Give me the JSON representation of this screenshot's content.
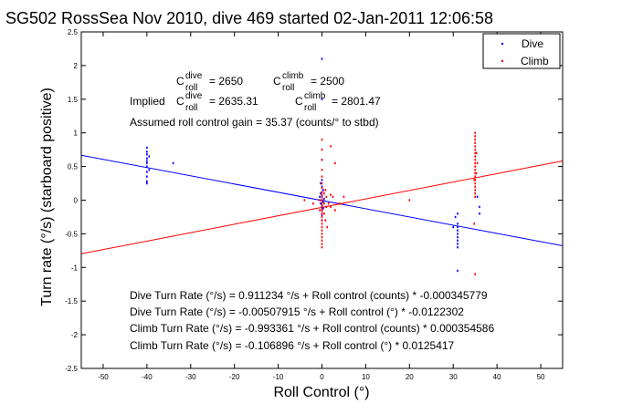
{
  "chart_data": {
    "type": "scatter",
    "title": "SG502 RossSea Nov 2010, dive 469 started 02-Jan-2011 12:06:58",
    "xlabel": "Roll Control (°)",
    "ylabel": "Turn rate (°/s) (starboard positive)",
    "xlim": [
      -55,
      55
    ],
    "ylim": [
      -2.5,
      2.5
    ],
    "xticks": [
      -50,
      -40,
      -30,
      -20,
      -10,
      0,
      10,
      20,
      30,
      40,
      50
    ],
    "yticks": [
      -2.5,
      -2,
      -1.5,
      -1,
      -0.5,
      0,
      0.5,
      1,
      1.5,
      2,
      2.5
    ],
    "grid": false,
    "legend": {
      "position": "top-right",
      "entries": [
        "Dive",
        "Climb"
      ]
    },
    "colors": {
      "Dive": "#0000ff",
      "Climb": "#ff0000"
    },
    "series": [
      {
        "name": "Dive",
        "points": [
          [
            -40,
            0.78
          ],
          [
            -40,
            0.72
          ],
          [
            -40,
            0.68
          ],
          [
            -40,
            0.62
          ],
          [
            -40,
            0.58
          ],
          [
            -40,
            0.55
          ],
          [
            -40,
            0.5
          ],
          [
            -40,
            0.42
          ],
          [
            -40,
            0.35
          ],
          [
            -40,
            0.28
          ],
          [
            -40,
            0.25
          ],
          [
            -39.5,
            0.65
          ],
          [
            -39.5,
            0.45
          ],
          [
            -34,
            0.55
          ],
          [
            0,
            2.1
          ],
          [
            0,
            1.5
          ],
          [
            0,
            0.6
          ],
          [
            0,
            0.3
          ],
          [
            0,
            0.2
          ],
          [
            0,
            0.12
          ],
          [
            0,
            0.06
          ],
          [
            0,
            0.0
          ],
          [
            0,
            -0.05
          ],
          [
            0,
            -0.1
          ],
          [
            0,
            -0.15
          ],
          [
            0,
            -0.22
          ],
          [
            0,
            -0.3
          ],
          [
            -0.3,
            0.25
          ],
          [
            -0.3,
            0.1
          ],
          [
            -0.3,
            -0.05
          ],
          [
            0.3,
            0.15
          ],
          [
            0.3,
            -0.02
          ],
          [
            0.3,
            -0.12
          ],
          [
            0.5,
            0.02
          ],
          [
            -0.5,
            0.05
          ],
          [
            31,
            -0.2
          ],
          [
            31,
            -0.35
          ],
          [
            31,
            -0.4
          ],
          [
            31,
            -0.45
          ],
          [
            31,
            -0.5
          ],
          [
            31,
            -0.55
          ],
          [
            31,
            -0.6
          ],
          [
            31,
            -0.65
          ],
          [
            31,
            -0.7
          ],
          [
            31,
            -1.05
          ],
          [
            30.5,
            -0.25
          ],
          [
            30,
            -0.4
          ],
          [
            36,
            -0.1
          ],
          [
            35.5,
            0.05
          ],
          [
            36,
            -0.2
          ]
        ]
      },
      {
        "name": "Climb",
        "points": [
          [
            35,
            1.0
          ],
          [
            35,
            0.95
          ],
          [
            35,
            0.9
          ],
          [
            35,
            0.85
          ],
          [
            35,
            0.8
          ],
          [
            35,
            0.75
          ],
          [
            35,
            0.7
          ],
          [
            35,
            0.65
          ],
          [
            35,
            0.6
          ],
          [
            35,
            0.55
          ],
          [
            35,
            0.5
          ],
          [
            35,
            0.45
          ],
          [
            35,
            0.4
          ],
          [
            35,
            0.35
          ],
          [
            35,
            0.3
          ],
          [
            35,
            0.25
          ],
          [
            35,
            0.2
          ],
          [
            35,
            0.15
          ],
          [
            35,
            0.1
          ],
          [
            35,
            0.05
          ],
          [
            35,
            -1.1
          ],
          [
            35.3,
            0.7
          ],
          [
            35.3,
            0.4
          ],
          [
            34.8,
            0.3
          ],
          [
            35.5,
            0.55
          ],
          [
            34.8,
            -0.35
          ],
          [
            0,
            0.9
          ],
          [
            0,
            0.75
          ],
          [
            0,
            0.6
          ],
          [
            0,
            0.45
          ],
          [
            0,
            0.35
          ],
          [
            0,
            0.25
          ],
          [
            0,
            0.18
          ],
          [
            0,
            0.12
          ],
          [
            0,
            0.08
          ],
          [
            0,
            0.04
          ],
          [
            0,
            0.0
          ],
          [
            0,
            -0.04
          ],
          [
            0,
            -0.08
          ],
          [
            0,
            -0.12
          ],
          [
            0,
            -0.16
          ],
          [
            0,
            -0.2
          ],
          [
            0,
            -0.25
          ],
          [
            0,
            -0.3
          ],
          [
            0,
            -0.35
          ],
          [
            0,
            -0.4
          ],
          [
            0,
            -0.45
          ],
          [
            0,
            -0.5
          ],
          [
            0,
            -0.55
          ],
          [
            0,
            -0.6
          ],
          [
            0,
            -0.65
          ],
          [
            0,
            -0.7
          ],
          [
            0.5,
            0.1
          ],
          [
            0.5,
            -0.05
          ],
          [
            0.5,
            -0.2
          ],
          [
            0.8,
            0.15
          ],
          [
            0.8,
            -0.3
          ],
          [
            1,
            0.05
          ],
          [
            1,
            -0.1
          ],
          [
            -0.5,
            0.0
          ],
          [
            -0.5,
            -0.15
          ],
          [
            1.2,
            -0.4
          ],
          [
            1.5,
            -0.05
          ],
          [
            2,
            -0.1
          ],
          [
            2,
            0.08
          ],
          [
            2.5,
            0.05
          ],
          [
            3,
            -0.15
          ],
          [
            4,
            -0.05
          ],
          [
            5,
            0.05
          ],
          [
            -2,
            -0.05
          ],
          [
            -4,
            0.0
          ],
          [
            2,
            0.8
          ],
          [
            3,
            0.55
          ],
          [
            20,
            0.0
          ]
        ]
      }
    ],
    "fit_lines": [
      {
        "series": "Dive",
        "slope": -0.0122302,
        "intercept": -0.00507915
      },
      {
        "series": "Climb",
        "slope": 0.0125417,
        "intercept": -0.106896
      }
    ]
  },
  "annotations": {
    "c": "C",
    "roll": "roll",
    "dive": "dive",
    "climb": "climb",
    "c_dive_value": "= 2650",
    "c_climb_value": "= 2500",
    "implied": "Implied",
    "implied_dive_value": "= 2635.31",
    "implied_climb_value": "= 2801.47",
    "assumed_gain": "Assumed roll control gain = 35.37 (counts/° to stbd)",
    "fit_lines": [
      "Dive Turn Rate (°/s) = 0.911234 °/s + Roll control (counts) * -0.000345779",
      "Dive Turn Rate (°/s) = -0.00507915 °/s + Roll control (°) * -0.0122302",
      "Climb Turn Rate (°/s) = -0.993361 °/s + Roll control (counts) * 0.000354586",
      "Climb Turn Rate (°/s) = -0.106896 °/s + Roll control (°) * 0.0125417"
    ]
  }
}
